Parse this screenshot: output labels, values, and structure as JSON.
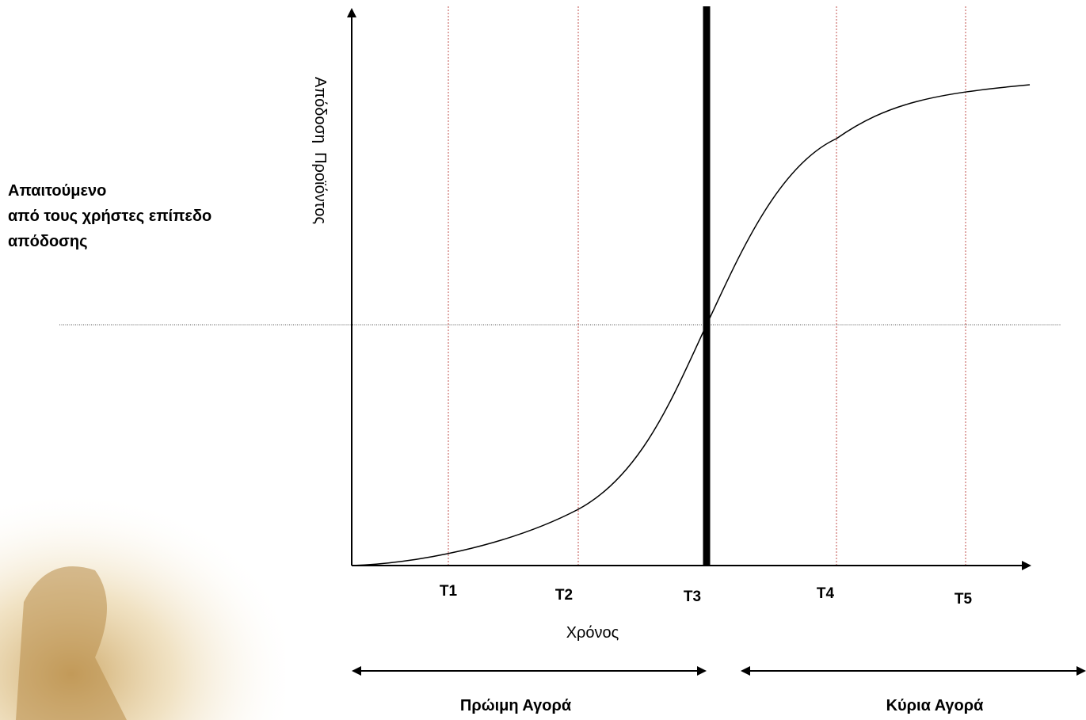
{
  "required_level": {
    "lines": [
      "Απαιτούμενο",
      "από τους χρήστες επίπεδο",
      "απόδοσης"
    ]
  },
  "y_axis_label": "Απόδοση  Προϊόντος",
  "x_axis_label": "Χρόνος",
  "time_points": [
    "T1",
    "T2",
    "T3",
    "T4",
    "T5"
  ],
  "markets": {
    "early": "Πρώιμη Αγορά",
    "main": "Κύρια Αγορά"
  }
}
